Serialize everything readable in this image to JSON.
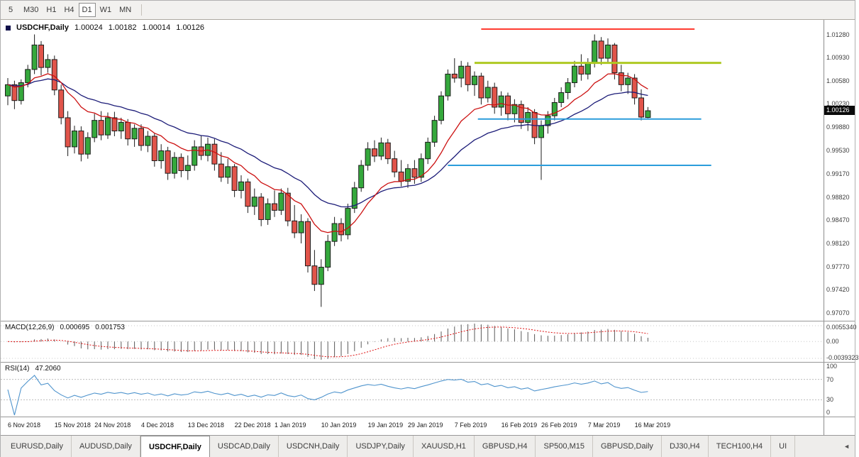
{
  "toolbar": {
    "timeframes": [
      {
        "label": "5",
        "selected": false
      },
      {
        "label": "M30",
        "selected": false
      },
      {
        "label": "H1",
        "selected": false
      },
      {
        "label": "H4",
        "selected": false
      },
      {
        "label": "D1",
        "selected": true
      },
      {
        "label": "W1",
        "selected": false
      },
      {
        "label": "MN",
        "selected": false
      }
    ]
  },
  "chart_header": {
    "symbol": "USDCHF,Daily",
    "open": "1.00024",
    "high": "1.00182",
    "low": "1.00014",
    "close": "1.00126"
  },
  "price_badge": "1.00126",
  "chart_data": {
    "type": "candlestick",
    "symbol": "USDCHF",
    "period": "Daily",
    "colors": {
      "up": "#35a83c",
      "down": "#e1544a",
      "outline": "#1c1c1c",
      "ma_fast": "#cc1111",
      "ma_slow": "#1c1c78",
      "macd_hist": "#5a5a5a",
      "macd_signal": "#dd1111",
      "rsi_line": "#4f94cd",
      "hline_red": "#ff3b30",
      "hline_green": "#aec922",
      "hline_blue": "#2b9ddb"
    },
    "price_axis": {
      "min": 0.9695,
      "max": 1.015,
      "ticks": [
        "1.01280",
        "1.00930",
        "1.00580",
        "1.00230",
        "0.99880",
        "0.99530",
        "0.99170",
        "0.98820",
        "0.98470",
        "0.98120",
        "0.97770",
        "0.97420",
        "0.97070"
      ]
    },
    "candles": [
      [
        1.0035,
        1.0062,
        1.0021,
        1.0052
      ],
      [
        1.0052,
        1.0058,
        1.0015,
        1.0028
      ],
      [
        1.0028,
        1.006,
        1.0022,
        1.0055
      ],
      [
        1.0055,
        1.0082,
        1.0048,
        1.0075
      ],
      [
        1.0075,
        1.0128,
        1.0068,
        1.0112
      ],
      [
        1.0112,
        1.0118,
        1.0066,
        1.0078
      ],
      [
        1.0078,
        1.0098,
        1.007,
        1.009
      ],
      [
        1.009,
        1.0096,
        1.0036,
        1.0044
      ],
      [
        1.0044,
        1.0052,
        0.9992,
        1.0002
      ],
      [
        1.0002,
        1.0012,
        0.9944,
        0.9958
      ],
      [
        0.9958,
        0.999,
        0.9948,
        0.9982
      ],
      [
        0.9982,
        0.9989,
        0.9936,
        0.9947
      ],
      [
        0.9947,
        0.998,
        0.994,
        0.9972
      ],
      [
        0.9972,
        1.0008,
        0.9965,
        0.9998
      ],
      [
        0.9998,
        1.0012,
        0.9968,
        0.9976
      ],
      [
        0.9976,
        1.001,
        0.997,
        1.0002
      ],
      [
        1.0002,
        1.0011,
        0.9974,
        0.9982
      ],
      [
        0.9982,
        1.0002,
        0.997,
        0.9995
      ],
      [
        0.9995,
        1.0,
        0.996,
        0.997
      ],
      [
        0.997,
        0.9992,
        0.9958,
        0.9986
      ],
      [
        0.9986,
        0.9992,
        0.9952,
        0.996
      ],
      [
        0.996,
        0.9982,
        0.995,
        0.9974
      ],
      [
        0.9974,
        0.9978,
        0.9928,
        0.9937
      ],
      [
        0.9937,
        0.9962,
        0.9925,
        0.9952
      ],
      [
        0.9952,
        0.9958,
        0.9908,
        0.9918
      ],
      [
        0.9918,
        0.995,
        0.991,
        0.9942
      ],
      [
        0.9942,
        0.9948,
        0.9912,
        0.9922
      ],
      [
        0.9922,
        0.9945,
        0.9908,
        0.993
      ],
      [
        0.993,
        0.9968,
        0.9922,
        0.9958
      ],
      [
        0.9958,
        0.9975,
        0.9938,
        0.9945
      ],
      [
        0.9945,
        0.9972,
        0.9936,
        0.9962
      ],
      [
        0.9962,
        0.997,
        0.9922,
        0.9932
      ],
      [
        0.9932,
        0.995,
        0.9905,
        0.9912
      ],
      [
        0.9912,
        0.994,
        0.9902,
        0.9928
      ],
      [
        0.9928,
        0.9932,
        0.9882,
        0.9892
      ],
      [
        0.9892,
        0.9915,
        0.988,
        0.9905
      ],
      [
        0.9905,
        0.991,
        0.9858,
        0.9868
      ],
      [
        0.9868,
        0.9895,
        0.9855,
        0.9882
      ],
      [
        0.9882,
        0.9888,
        0.9838,
        0.9848
      ],
      [
        0.9848,
        0.988,
        0.984,
        0.9872
      ],
      [
        0.9872,
        0.9892,
        0.9852,
        0.9862
      ],
      [
        0.9862,
        0.9895,
        0.9855,
        0.9888
      ],
      [
        0.9888,
        0.9896,
        0.9838,
        0.9846
      ],
      [
        0.9846,
        0.987,
        0.982,
        0.9828
      ],
      [
        0.9828,
        0.9856,
        0.9812,
        0.9845
      ],
      [
        0.9845,
        0.985,
        0.9768,
        0.9778
      ],
      [
        0.9778,
        0.9802,
        0.974,
        0.975
      ],
      [
        0.975,
        0.9788,
        0.9716,
        0.9776
      ],
      [
        0.9776,
        0.9825,
        0.977,
        0.9815
      ],
      [
        0.9815,
        0.9852,
        0.9808,
        0.9842
      ],
      [
        0.9842,
        0.985,
        0.9815,
        0.9825
      ],
      [
        0.9825,
        0.9872,
        0.9818,
        0.9865
      ],
      [
        0.9865,
        0.9905,
        0.9858,
        0.9896
      ],
      [
        0.9896,
        0.9938,
        0.989,
        0.993
      ],
      [
        0.993,
        0.9965,
        0.9922,
        0.9955
      ],
      [
        0.9955,
        0.9968,
        0.9935,
        0.9944
      ],
      [
        0.9944,
        0.9972,
        0.9938,
        0.9964
      ],
      [
        0.9964,
        0.997,
        0.9932,
        0.994
      ],
      [
        0.994,
        0.9952,
        0.9912,
        0.992
      ],
      [
        0.992,
        0.9938,
        0.9898,
        0.9906
      ],
      [
        0.9906,
        0.9932,
        0.9896,
        0.9925
      ],
      [
        0.9925,
        0.9938,
        0.9902,
        0.9912
      ],
      [
        0.9912,
        0.9948,
        0.9905,
        0.994
      ],
      [
        0.994,
        0.9972,
        0.9932,
        0.9965
      ],
      [
        0.9965,
        1.0005,
        0.9958,
        0.9998
      ],
      [
        0.9998,
        1.0042,
        0.9992,
        1.0035
      ],
      [
        1.0035,
        1.0075,
        1.0028,
        1.0068
      ],
      [
        1.0068,
        1.0092,
        1.0055,
        1.0062
      ],
      [
        1.0062,
        1.0088,
        1.0048,
        1.008
      ],
      [
        1.008,
        1.0086,
        1.0042,
        1.0052
      ],
      [
        1.0052,
        1.0072,
        1.0035,
        1.0065
      ],
      [
        1.0065,
        1.007,
        1.0022,
        1.0032
      ],
      [
        1.0032,
        1.0058,
        1.0025,
        1.0048
      ],
      [
        1.0048,
        1.0055,
        1.0008,
        1.0018
      ],
      [
        1.0018,
        1.0042,
        1.0005,
        1.0035
      ],
      [
        1.0035,
        1.004,
        0.9998,
        1.0008
      ],
      [
        1.0008,
        1.003,
        0.9995,
        1.0022
      ],
      [
        1.0022,
        1.0028,
        0.9985,
        0.9995
      ],
      [
        0.9995,
        1.0018,
        0.9982,
        1.001
      ],
      [
        1.001,
        1.0015,
        0.9962,
        0.9972
      ],
      [
        0.9972,
        0.9998,
        0.9908,
        0.999
      ],
      [
        0.999,
        1.0012,
        0.9978,
        1.0005
      ],
      [
        1.0005,
        1.0032,
        0.9998,
        1.0025
      ],
      [
        1.0025,
        1.0048,
        1.0018,
        1.004
      ],
      [
        1.004,
        1.0062,
        1.003,
        1.0055
      ],
      [
        1.0055,
        1.0088,
        1.0048,
        1.008
      ],
      [
        1.008,
        1.0098,
        1.0058,
        1.0068
      ],
      [
        1.0068,
        1.0092,
        1.006,
        1.0085
      ],
      [
        1.0085,
        1.0128,
        1.0078,
        1.0118
      ],
      [
        1.0118,
        1.0124,
        1.0082,
        1.0092
      ],
      [
        1.0092,
        1.0122,
        1.0086,
        1.0112
      ],
      [
        1.0112,
        1.0115,
        1.006,
        1.007
      ],
      [
        1.007,
        1.0082,
        1.0042,
        1.0052
      ],
      [
        1.0052,
        1.007,
        1.0038,
        1.0062
      ],
      [
        1.0062,
        1.0068,
        1.0022,
        1.0032
      ],
      [
        1.0032,
        1.0045,
        0.9998,
        1.0003
      ],
      [
        1.00024,
        1.00182,
        1.00014,
        1.00126
      ]
    ],
    "x_labels": [
      {
        "text": "6 Nov 2018",
        "index": 0
      },
      {
        "text": "15 Nov 2018",
        "index": 7
      },
      {
        "text": "24 Nov 2018",
        "index": 13
      },
      {
        "text": "4 Dec 2018",
        "index": 20
      },
      {
        "text": "13 Dec 2018",
        "index": 27
      },
      {
        "text": "22 Dec 2018",
        "index": 34
      },
      {
        "text": "1 Jan 2019",
        "index": 40
      },
      {
        "text": "10 Jan 2019",
        "index": 47
      },
      {
        "text": "19 Jan 2019",
        "index": 54
      },
      {
        "text": "29 Jan 2019",
        "index": 60
      },
      {
        "text": "7 Feb 2019",
        "index": 67
      },
      {
        "text": "16 Feb 2019",
        "index": 74
      },
      {
        "text": "26 Feb 2019",
        "index": 80
      },
      {
        "text": "7 Mar 2019",
        "index": 87
      },
      {
        "text": "16 Mar 2019",
        "index": 94
      }
    ],
    "ma_overlays": [
      {
        "name": "ema-fast",
        "period": 12
      },
      {
        "name": "ema-slow",
        "period": 26
      }
    ],
    "hlines": [
      {
        "name": "resistance-upper",
        "price": 1.0136,
        "from": 71,
        "to": 103,
        "color_key": "hline_red",
        "width": 2
      },
      {
        "name": "resistance-mid",
        "price": 1.0085,
        "from": 70,
        "to": 107,
        "color_key": "hline_green",
        "width": 3
      },
      {
        "name": "support-upper",
        "price": 1.0,
        "from": 70.5,
        "to": 104,
        "color_key": "hline_blue",
        "width": 2
      },
      {
        "name": "support-lower",
        "price": 0.993,
        "from": 66,
        "to": 105.5,
        "color_key": "hline_blue",
        "width": 2
      }
    ],
    "macd": {
      "label": "MACD(12,26,9)",
      "value_main": "0.000695",
      "value_signal": "0.001753",
      "fast": 12,
      "slow": 26,
      "signal": 9,
      "axis_labels": [
        "0.0055340",
        "0.00",
        "-0.0039323"
      ]
    },
    "rsi": {
      "label": "RSI(14)",
      "value": "47.2060",
      "period": 14,
      "levels": [
        "100",
        "70",
        "30",
        "0"
      ]
    }
  },
  "bottom_tabs": [
    {
      "label": "EURUSD,Daily",
      "selected": false
    },
    {
      "label": "AUDUSD,Daily",
      "selected": false
    },
    {
      "label": "USDCHF,Daily",
      "selected": true
    },
    {
      "label": "USDCAD,Daily",
      "selected": false
    },
    {
      "label": "USDCNH,Daily",
      "selected": false
    },
    {
      "label": "USDJPY,Daily",
      "selected": false
    },
    {
      "label": "XAUUSD,H1",
      "selected": false
    },
    {
      "label": "GBPUSD,H4",
      "selected": false
    },
    {
      "label": "SP500,M15",
      "selected": false
    },
    {
      "label": "GBPUSD,Daily",
      "selected": false
    },
    {
      "label": "DJ30,H4",
      "selected": false
    },
    {
      "label": "TECH100,H4",
      "selected": false
    },
    {
      "label": "UI",
      "selected": false
    }
  ],
  "tab_scroll_icon": "◄"
}
